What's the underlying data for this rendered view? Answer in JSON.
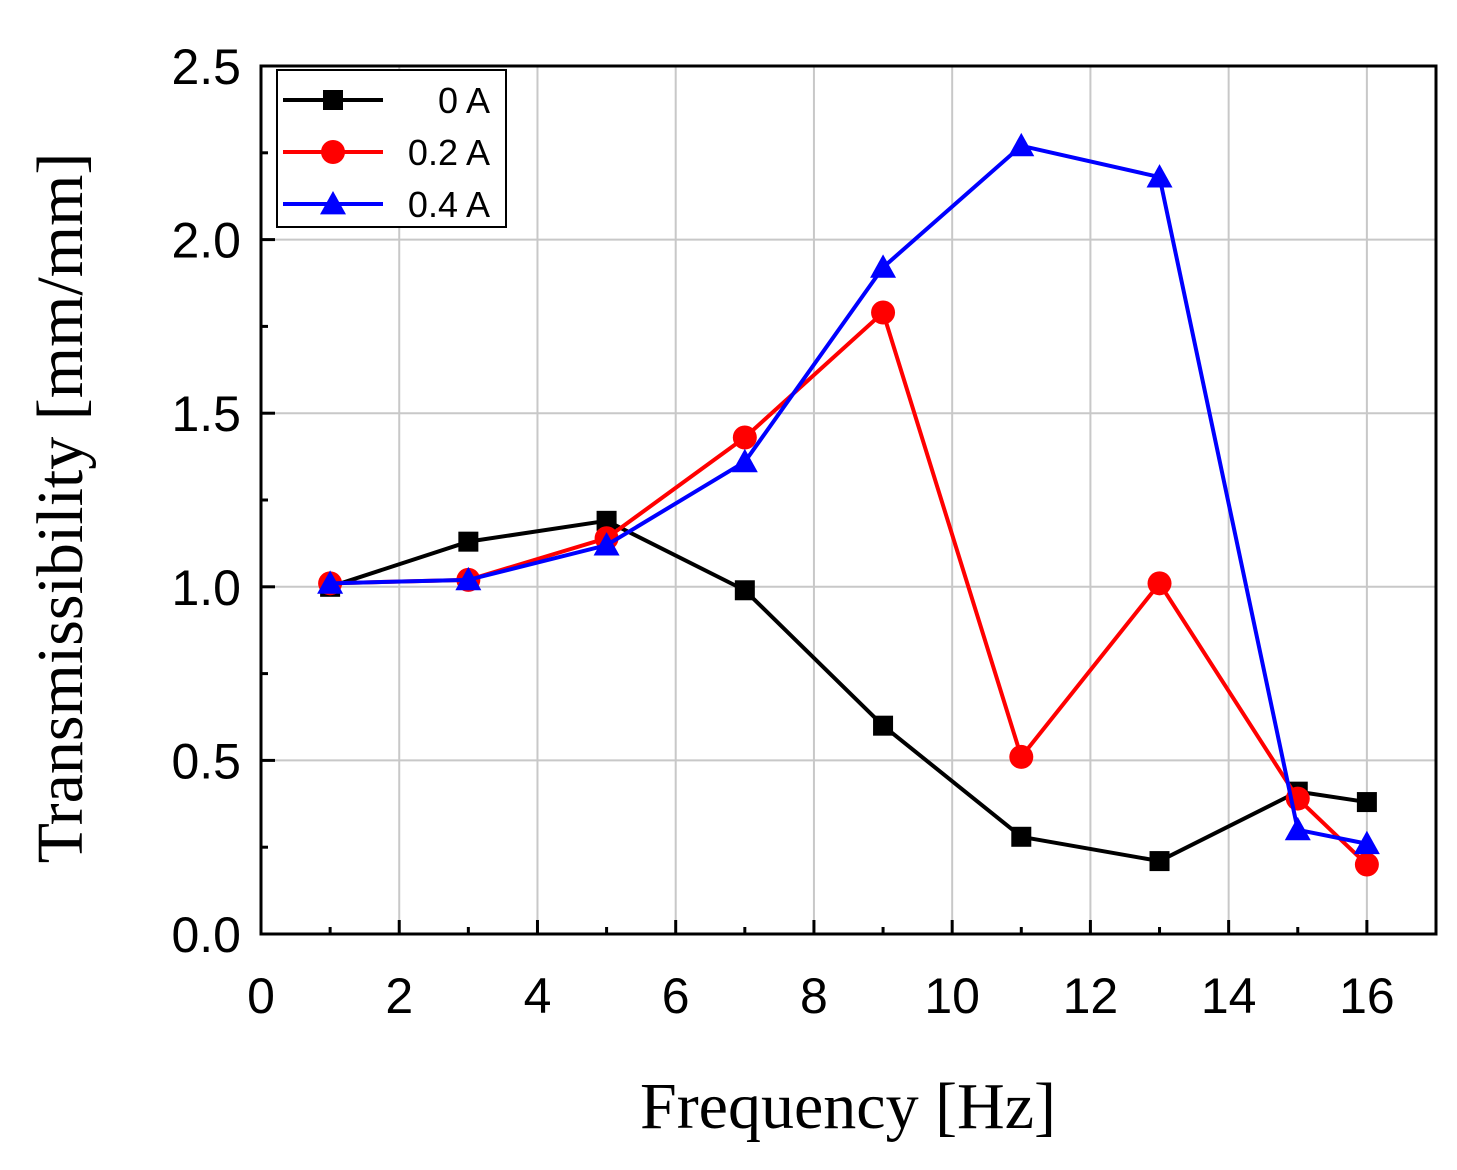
{
  "chart_data": {
    "type": "line",
    "title": "",
    "xlabel": "Frequency [Hz]",
    "ylabel": "Transmissibility [mm/mm]",
    "xlim": [
      0,
      17
    ],
    "ylim": [
      0,
      2.5
    ],
    "xticks": [
      0,
      2,
      4,
      6,
      8,
      10,
      12,
      14,
      16
    ],
    "xtick_labels": [
      "0",
      "2",
      "4",
      "6",
      "8",
      "10",
      "12",
      "14",
      "16"
    ],
    "yticks": [
      0,
      0.5,
      1.0,
      1.5,
      2.0,
      2.5
    ],
    "ytick_labels": [
      "0.0",
      "0.5",
      "1.0",
      "1.5",
      "2.0",
      "2.5"
    ],
    "grid": true,
    "legend_position": "top-left",
    "x": [
      1,
      3,
      5,
      7,
      9,
      11,
      13,
      15,
      16
    ],
    "series": [
      {
        "name": "0 A",
        "color": "#000000",
        "marker": "square",
        "values": [
          1.0,
          1.13,
          1.19,
          0.99,
          0.6,
          0.28,
          0.21,
          0.41,
          0.38
        ]
      },
      {
        "name": "0.2 A",
        "color": "#ff0000",
        "marker": "circle",
        "values": [
          1.01,
          1.02,
          1.14,
          1.43,
          1.79,
          0.51,
          1.01,
          0.39,
          0.2
        ]
      },
      {
        "name": "0.4 A",
        "color": "#0000ff",
        "marker": "triangle",
        "values": [
          1.01,
          1.02,
          1.12,
          1.36,
          1.92,
          2.27,
          2.18,
          0.3,
          0.26
        ]
      }
    ]
  }
}
